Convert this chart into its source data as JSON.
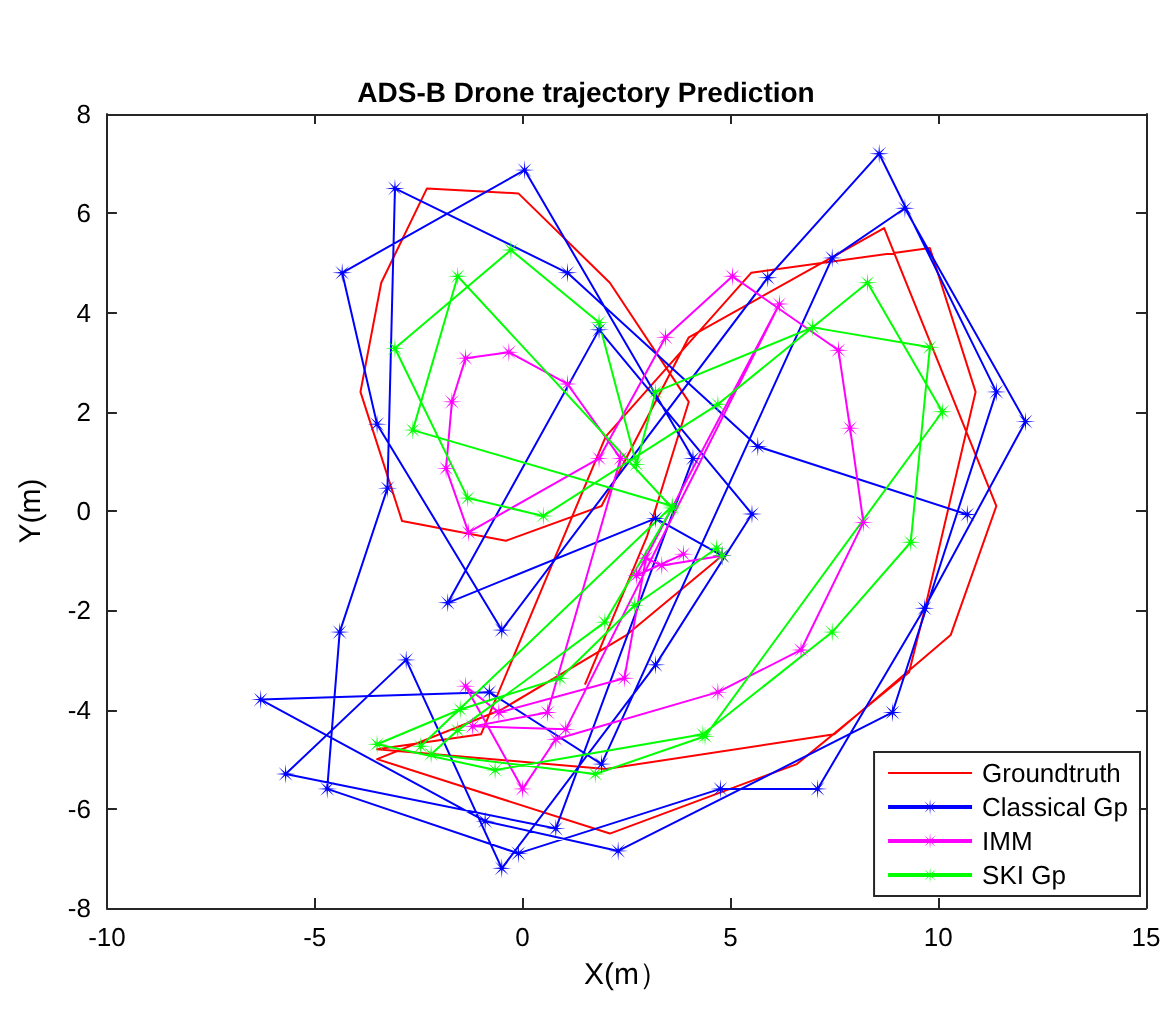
{
  "chart_data": {
    "type": "line",
    "title": "ADS-B Drone trajectory Prediction",
    "xlabel": "X(m）",
    "ylabel": "Y(m)",
    "xlim": [
      -10,
      15
    ],
    "xticks": [
      -10,
      -5,
      0,
      5,
      10,
      15
    ],
    "ylim": [
      -8,
      8
    ],
    "yticks": [
      -8,
      -6,
      -4,
      -2,
      0,
      2,
      4,
      6,
      8
    ],
    "grid": false,
    "legend": "bottom right",
    "line_style": "solid",
    "series": [
      {
        "name": "Groundtruth",
        "color": "#ff0000",
        "marker": "none",
        "x": [
          4.8,
          2.5,
          -0.5,
          -3.5,
          2.1,
          6.6,
          9.3,
          9.7,
          10.9,
          9.8,
          5.5,
          2.0,
          0.5,
          -1.0,
          -3.5,
          2.0,
          7.5,
          10.3,
          11.4,
          8.7,
          4.0,
          1.9,
          -0.4,
          -2.9,
          -3.9,
          -3.4,
          -2.3,
          -0.1,
          2.1,
          4.0,
          3.0,
          1.5
        ],
        "values": [
          -0.9,
          -2.5,
          -4.0,
          -5.0,
          -6.5,
          -5.1,
          -3.25,
          -1.9,
          2.4,
          5.3,
          4.8,
          1.5,
          -1.5,
          -4.5,
          -4.8,
          -5.2,
          -4.5,
          -2.5,
          0.1,
          5.7,
          3.5,
          0.1,
          -0.6,
          -0.2,
          2.4,
          4.6,
          6.5,
          6.4,
          4.6,
          2.2,
          -0.5,
          -3.5
        ]
      },
      {
        "name": "Classical Gp",
        "color": "#0000ff",
        "marker": "star",
        "x": [
          4.8,
          3.2,
          -1.8,
          1.84,
          5.52,
          3.2,
          -0.5,
          -2.8,
          -5.7,
          0.8,
          4.1,
          0.05,
          -4.34,
          -3.5,
          -0.5,
          5.9,
          8.58,
          11.4,
          8.9,
          2.3,
          -0.9,
          -6.3,
          -0.8,
          1.9,
          7.45,
          9.2,
          12.1,
          9.67,
          7.1,
          4.76,
          -0.1,
          -4.7,
          -4.4,
          -3.25,
          -3.07,
          1.08,
          5.66,
          10.7
        ],
        "values": [
          -0.9,
          -0.15,
          -1.85,
          3.65,
          -0.06,
          -3.1,
          -7.2,
          -3.0,
          -5.3,
          -6.4,
          1.06,
          6.87,
          4.8,
          1.75,
          -2.4,
          4.7,
          7.2,
          2.4,
          -4.06,
          -6.85,
          -6.25,
          -3.8,
          -3.65,
          -5.1,
          5.1,
          6.1,
          1.8,
          -1.96,
          -5.6,
          -5.6,
          -6.9,
          -5.6,
          -2.44,
          0.46,
          6.5,
          4.8,
          1.3,
          -0.07
        ]
      },
      {
        "name": "IMM",
        "color": "#ff00ff",
        "marker": "star",
        "x": [
          4.8,
          3.35,
          2.97,
          2.45,
          -0.57,
          -1.37,
          0.0,
          0.8,
          4.7,
          6.7,
          8.2,
          7.88,
          7.6,
          5.05,
          3.44,
          1.84,
          -1.3,
          -1.84,
          -1.7,
          -1.37,
          -0.33,
          1.08,
          2.36,
          0.6,
          -1.2,
          1.04,
          6.18,
          2.74,
          3.87
        ],
        "values": [
          -0.9,
          -1.1,
          -0.95,
          -3.37,
          -4.06,
          -3.53,
          -5.6,
          -4.6,
          -3.65,
          -2.8,
          -0.23,
          1.67,
          3.24,
          4.73,
          3.5,
          1.06,
          -0.43,
          0.86,
          2.2,
          3.08,
          3.2,
          2.56,
          1.06,
          -4.06,
          -4.34,
          -4.4,
          4.17,
          -1.3,
          -0.87
        ]
      },
      {
        "name": "SKI Gp",
        "color": "#00ff00",
        "marker": "star",
        "x": [
          4.8,
          4.67,
          2.7,
          0.9,
          -1.5,
          -3.5,
          -0.66,
          4.34,
          7.45,
          9.34,
          9.8,
          6.98,
          3.2,
          2.74,
          1.84,
          -0.28,
          -3.07,
          -1.32,
          0.5,
          4.7,
          8.3,
          10.1,
          4.39,
          1.75,
          -2.2,
          -1.56,
          1.98,
          3.6,
          -1.56,
          -2.64,
          3.6,
          -2.45
        ],
        "values": [
          -0.9,
          -0.75,
          -1.9,
          -3.37,
          -4.0,
          -4.7,
          -5.22,
          -4.5,
          -2.44,
          -0.63,
          3.3,
          3.7,
          2.4,
          0.94,
          3.8,
          5.26,
          3.28,
          0.26,
          -0.1,
          2.15,
          4.6,
          2.0,
          -4.54,
          -5.3,
          -4.9,
          -4.42,
          -2.24,
          0.06,
          4.73,
          1.63,
          0.1,
          -4.74
        ]
      }
    ]
  }
}
